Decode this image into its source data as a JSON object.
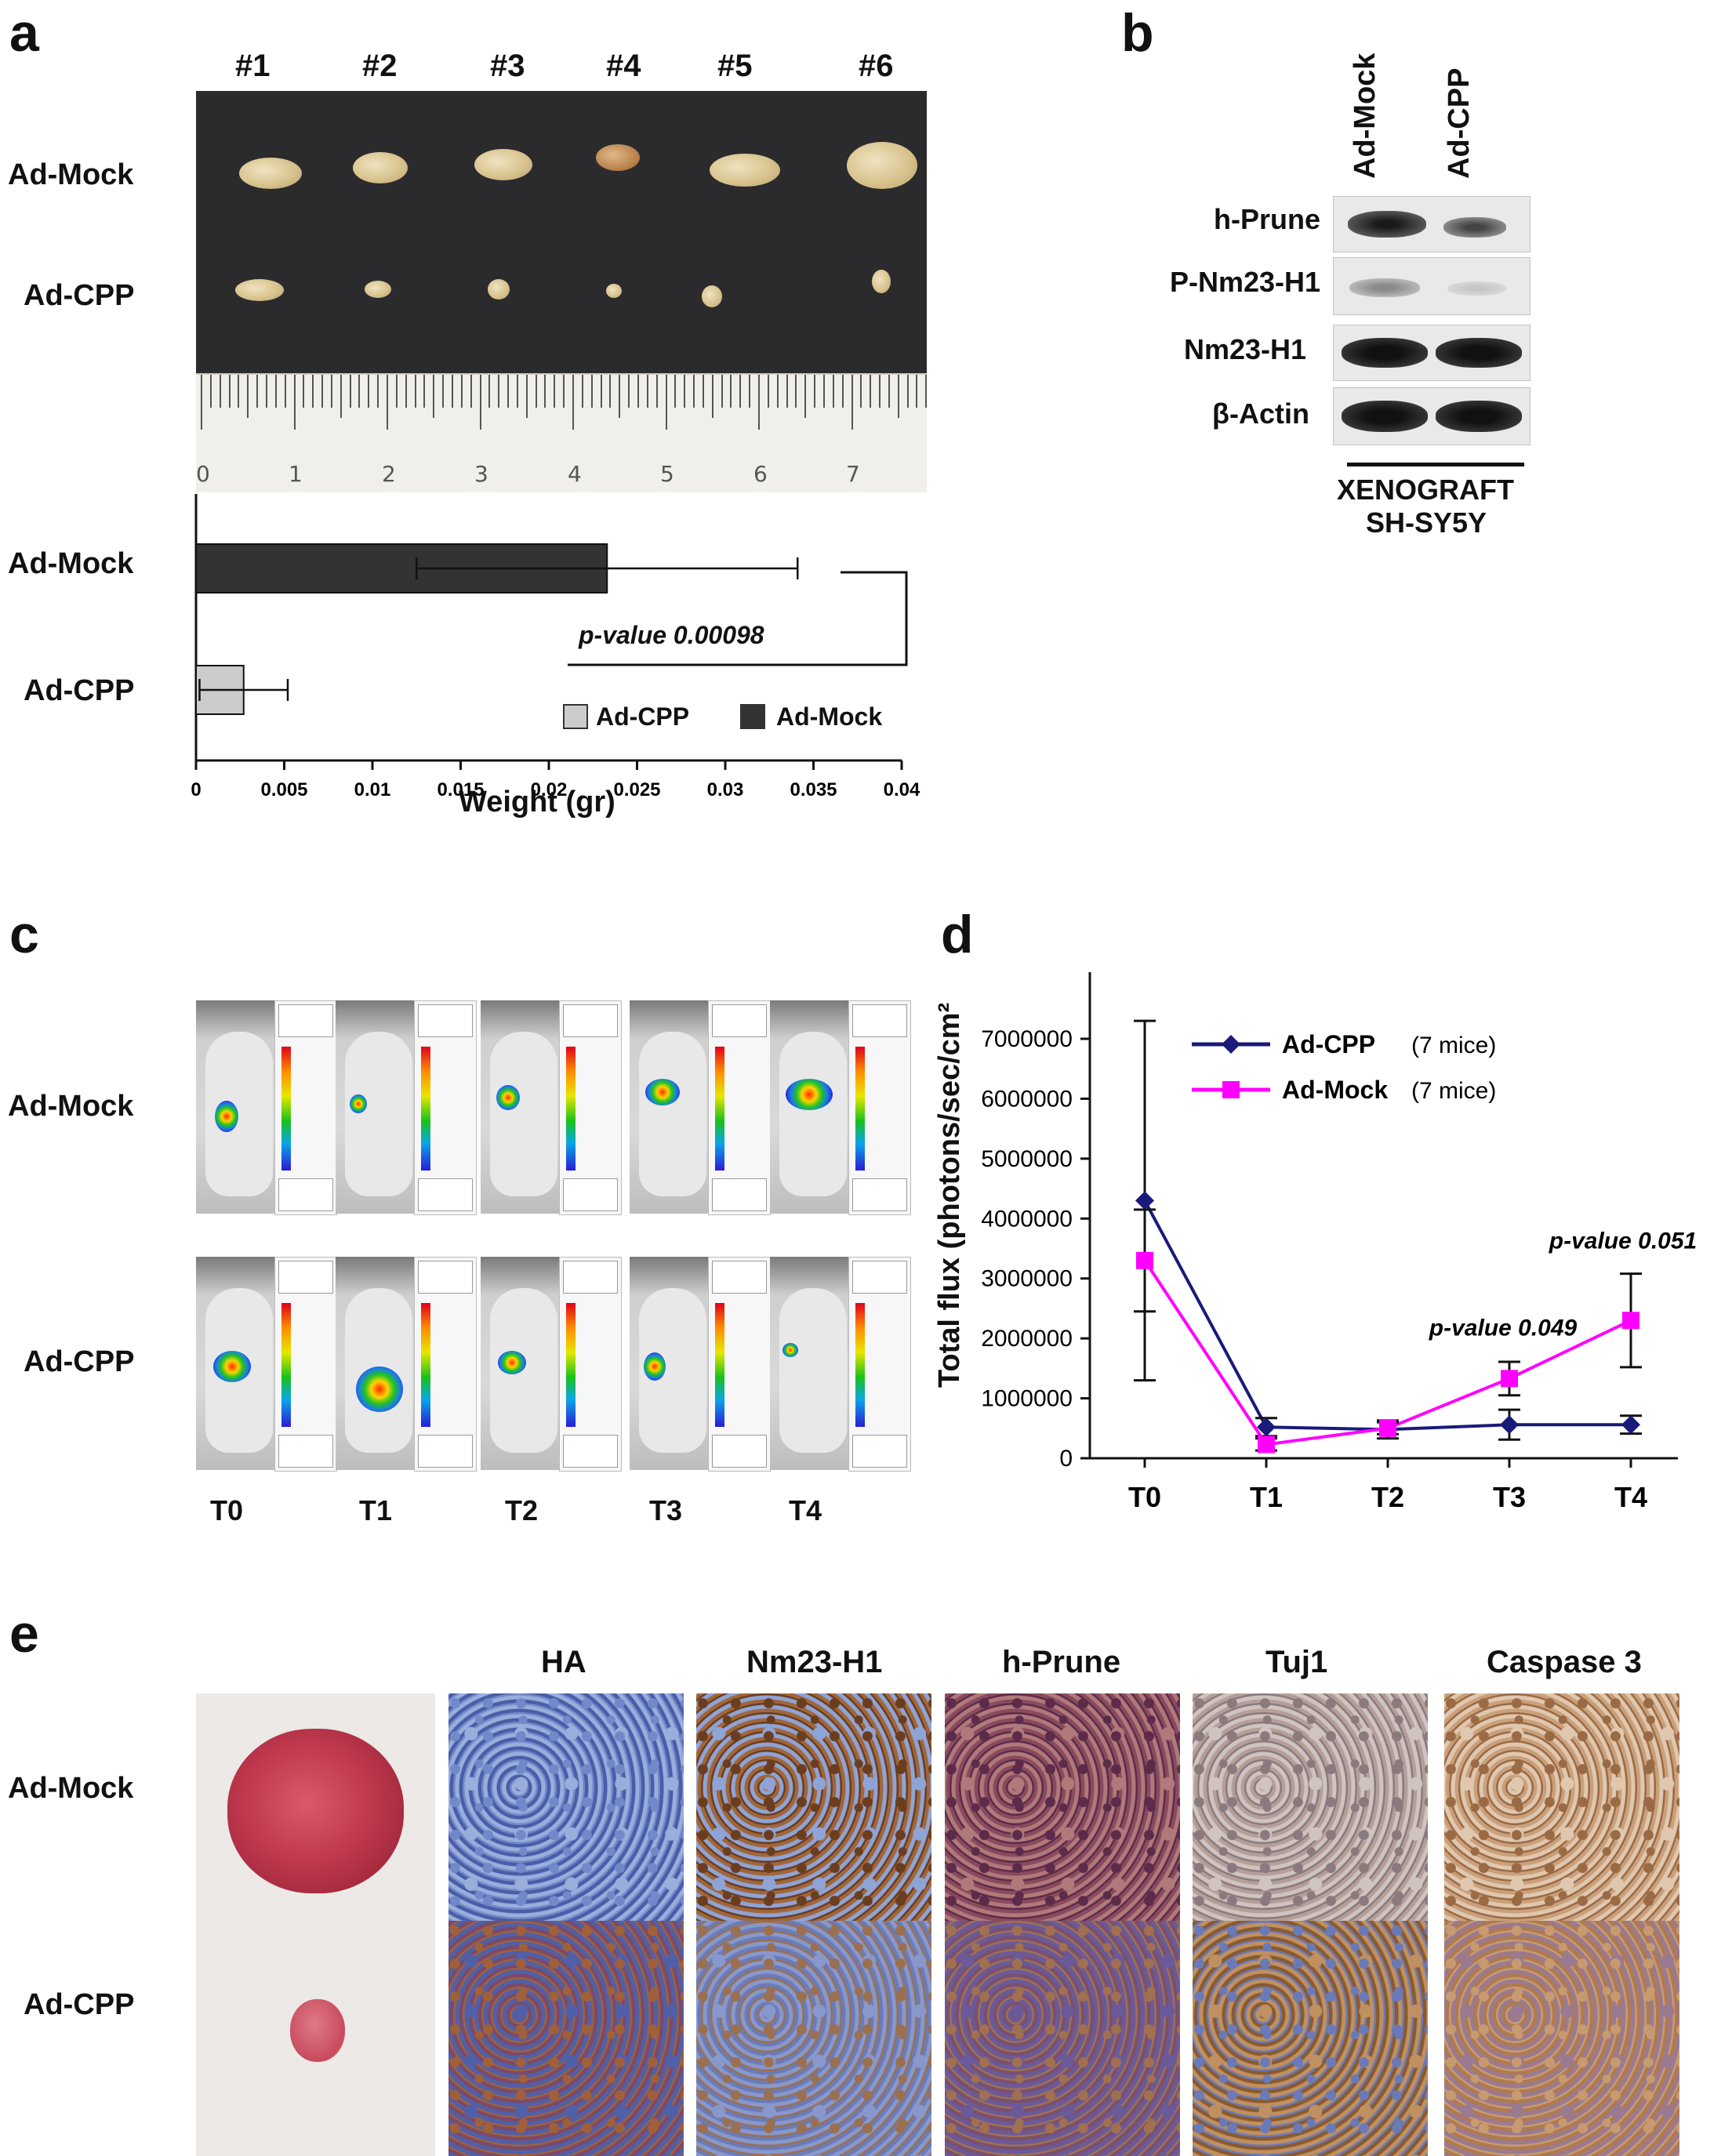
{
  "panel_labels": {
    "a": "a",
    "b": "b",
    "c": "c",
    "d": "d",
    "e": "e"
  },
  "panel_a": {
    "mouse_ids": [
      "#1",
      "#2",
      "#3",
      "#4",
      "#5",
      "#6"
    ],
    "row_labels": [
      "Ad-Mock",
      "Ad-CPP"
    ],
    "ruler_numbers": [
      "0",
      "1",
      "2",
      "3",
      "4",
      "5",
      "6",
      "7"
    ],
    "chart_data": {
      "type": "bar",
      "orientation": "horizontal",
      "categories": [
        "Ad-Mock",
        "Ad-CPP"
      ],
      "values": [
        0.0233,
        0.0027
      ],
      "errors": [
        0.0108,
        0.0025
      ],
      "colors": [
        "#333333",
        "#cccccc"
      ],
      "xlabel": "Weight (gr)",
      "xlim": [
        0,
        0.04
      ],
      "xticks": [
        "0",
        "0.005",
        "0.01",
        "0.015",
        "0.02",
        "0.025",
        "0.03",
        "0.035",
        "0.04"
      ],
      "annotation": "p-value 0.00098",
      "legend": [
        {
          "name": "Ad-CPP",
          "color": "#cccccc"
        },
        {
          "name": "Ad-Mock",
          "color": "#333333"
        }
      ],
      "legend_position": "bottom-right"
    }
  },
  "panel_b": {
    "lane_labels": [
      "Ad-Mock",
      "Ad-CPP"
    ],
    "blot_labels": [
      "h-Prune",
      "P-Nm23-H1",
      "Nm23-H1",
      "β-Actin"
    ],
    "footer_line1": "XENOGRAFT",
    "footer_line2": "SH-SY5Y"
  },
  "panel_c": {
    "row_labels": [
      "Ad-Mock",
      "Ad-CPP"
    ],
    "timepoints": [
      "T0",
      "T1",
      "T2",
      "T3",
      "T4"
    ]
  },
  "panel_d": {
    "chart_data": {
      "type": "line",
      "x": [
        "T0",
        "T1",
        "T2",
        "T3",
        "T4"
      ],
      "ylabel": "Total flux (photons/sec/cm²",
      "ylim": [
        0,
        7000000
      ],
      "yticks": [
        "0",
        "1000000",
        "2000000",
        "3000000",
        "4000000",
        "5000000",
        "6000000",
        "7000000"
      ],
      "series": [
        {
          "name": "Ad-CPP",
          "note": "(7 mice)",
          "color": "#1a1a7a",
          "marker": "diamond",
          "values": [
            4300000,
            520000,
            480000,
            560000,
            560000
          ],
          "errors": [
            3000000,
            150000,
            150000,
            250000,
            150000
          ]
        },
        {
          "name": "Ad-Mock",
          "note": "(7 mice)",
          "color": "#ff00ff",
          "marker": "square",
          "values": [
            3300000,
            230000,
            500000,
            1330000,
            2300000
          ],
          "errors": [
            850000,
            100000,
            100000,
            280000,
            780000
          ]
        }
      ],
      "annotations": [
        {
          "text": "p-value 0.049",
          "x": "T3"
        },
        {
          "text": "p-value 0.051",
          "x": "T4"
        }
      ],
      "legend_position": "top-left"
    }
  },
  "panel_e": {
    "row_labels": [
      "Ad-Mock",
      "Ad-CPP"
    ],
    "column_headers": [
      "HA",
      "Nm23-H1",
      "h-Prune",
      "Tuj1",
      "Caspase 3"
    ]
  }
}
